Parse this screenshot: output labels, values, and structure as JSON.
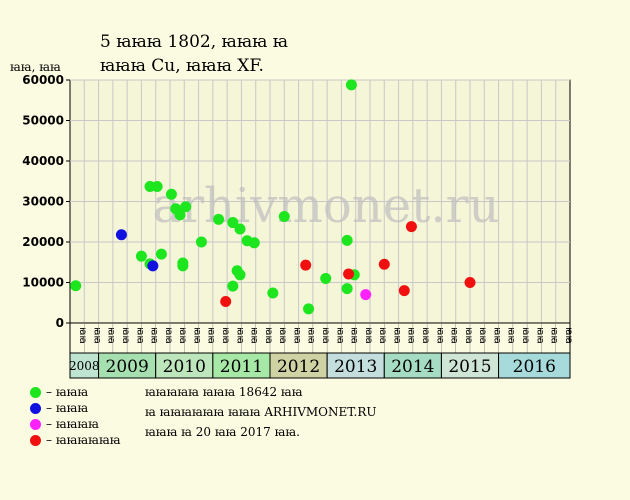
{
  "chart_data": {
    "type": "scatter",
    "title_line1": "5 ꙗꙗꙗ 1802, ꙗꙗꙗ ꙗ",
    "title_line2": "ꙗꙗꙗ Cu, ꙗꙗꙗ XF.",
    "ylabel": "ꙗꙗ, ꙗꙗ",
    "watermark": "arhivmonet.ru",
    "ylim": [
      0,
      60000
    ],
    "yticks": [
      "0",
      "10000",
      "20000",
      "30000",
      "40000",
      "50000",
      "60000"
    ],
    "xlim": [
      0,
      35
    ],
    "quarter_labels": [
      "ꙗꙗ",
      "ꙗꙗ",
      "ꙗꙗ",
      "ꙗꙗ",
      "ꙗꙗ",
      "ꙗꙗ",
      "ꙗꙗ",
      "ꙗꙗ",
      "ꙗꙗ",
      "ꙗꙗ",
      "ꙗꙗ",
      "ꙗꙗ",
      "ꙗꙗ",
      "ꙗꙗ",
      "ꙗꙗ",
      "ꙗꙗ",
      "ꙗꙗ",
      "ꙗꙗ",
      "ꙗꙗ",
      "ꙗꙗ",
      "ꙗꙗ",
      "ꙗꙗ",
      "ꙗꙗ",
      "ꙗꙗ",
      "ꙗꙗ",
      "ꙗꙗ",
      "ꙗꙗ",
      "ꙗꙗ",
      "ꙗꙗ",
      "ꙗꙗ",
      "ꙗꙗ",
      "ꙗꙗ",
      "ꙗꙗ",
      "ꙗꙗ",
      "ꙗꙗ"
    ],
    "years": [
      {
        "label": "2008",
        "start": 0,
        "end": 2,
        "color": "#bfe4cf"
      },
      {
        "label": "2009",
        "start": 2,
        "end": 6,
        "color": "#a7e0b0"
      },
      {
        "label": "2010",
        "start": 6,
        "end": 10,
        "color": "#bde6bd"
      },
      {
        "label": "2011",
        "start": 10,
        "end": 14,
        "color": "#a7e8a7"
      },
      {
        "label": "2012",
        "start": 14,
        "end": 18,
        "color": "#cfd3a3"
      },
      {
        "label": "2013",
        "start": 18,
        "end": 22,
        "color": "#c4dede"
      },
      {
        "label": "2014",
        "start": 22,
        "end": 26,
        "color": "#a7dcc4"
      },
      {
        "label": "2015",
        "start": 26,
        "end": 30,
        "color": "#cfe6d6"
      },
      {
        "label": "2016",
        "start": 30,
        "end": 35,
        "color": "#a7dbdb"
      }
    ],
    "series": [
      {
        "name": "ꙗꙗꙗ",
        "color": "#1ee61e",
        "points": [
          [
            0.4,
            9200
          ],
          [
            5.0,
            16500
          ],
          [
            5.6,
            33700
          ],
          [
            5.6,
            14600
          ],
          [
            6.1,
            33700
          ],
          [
            6.4,
            17000
          ],
          [
            7.1,
            31800
          ],
          [
            7.4,
            28200
          ],
          [
            7.7,
            26700
          ],
          [
            7.9,
            14800
          ],
          [
            7.9,
            14100
          ],
          [
            8.1,
            28700
          ],
          [
            9.2,
            20000
          ],
          [
            10.4,
            25600
          ],
          [
            11.4,
            9100
          ],
          [
            11.4,
            24800
          ],
          [
            11.7,
            12900
          ],
          [
            11.9,
            11900
          ],
          [
            11.9,
            23200
          ],
          [
            12.4,
            20300
          ],
          [
            12.9,
            19800
          ],
          [
            14.2,
            7400
          ],
          [
            15.0,
            26300
          ],
          [
            16.7,
            3500
          ],
          [
            17.9,
            11000
          ],
          [
            19.4,
            20400
          ],
          [
            19.4,
            8500
          ],
          [
            19.7,
            58800
          ],
          [
            19.9,
            11900
          ]
        ]
      },
      {
        "name": "ꙗꙗꙗ",
        "color": "#1010e0",
        "points": [
          [
            3.6,
            21800
          ],
          [
            5.8,
            14100
          ]
        ]
      },
      {
        "name": "ꙗꙗꙗꙗ",
        "color": "#ff22ff",
        "points": [
          [
            20.7,
            7000
          ]
        ]
      },
      {
        "name": "ꙗꙗꙗꙗꙗꙗ",
        "color": "#f01010",
        "points": [
          [
            10.9,
            5300
          ],
          [
            16.5,
            14300
          ],
          [
            19.5,
            12100
          ],
          [
            22.0,
            14500
          ],
          [
            23.4,
            8000
          ],
          [
            23.9,
            23800
          ],
          [
            28.0,
            10000
          ]
        ]
      }
    ]
  },
  "legend": [
    {
      "label": "– ꙗꙗꙗ",
      "color": "#1ee61e"
    },
    {
      "label": "– ꙗꙗꙗ",
      "color": "#1010e0"
    },
    {
      "label": "– ꙗꙗꙗꙗ",
      "color": "#ff22ff"
    },
    {
      "label": "– ꙗꙗꙗꙗꙗꙗ",
      "color": "#f01010"
    }
  ],
  "info": {
    "line1": "ꙗꙗꙗꙗꙗ ꙗꙗꙗ 18642 ꙗꙗ",
    "line2": "ꙗ ꙗꙗꙗꙗꙗꙗ ꙗꙗꙗ ARHIVMONET.RU",
    "line3": "ꙗꙗꙗ ꙗ 20 ꙗꙗ 2017 ꙗꙗ."
  }
}
